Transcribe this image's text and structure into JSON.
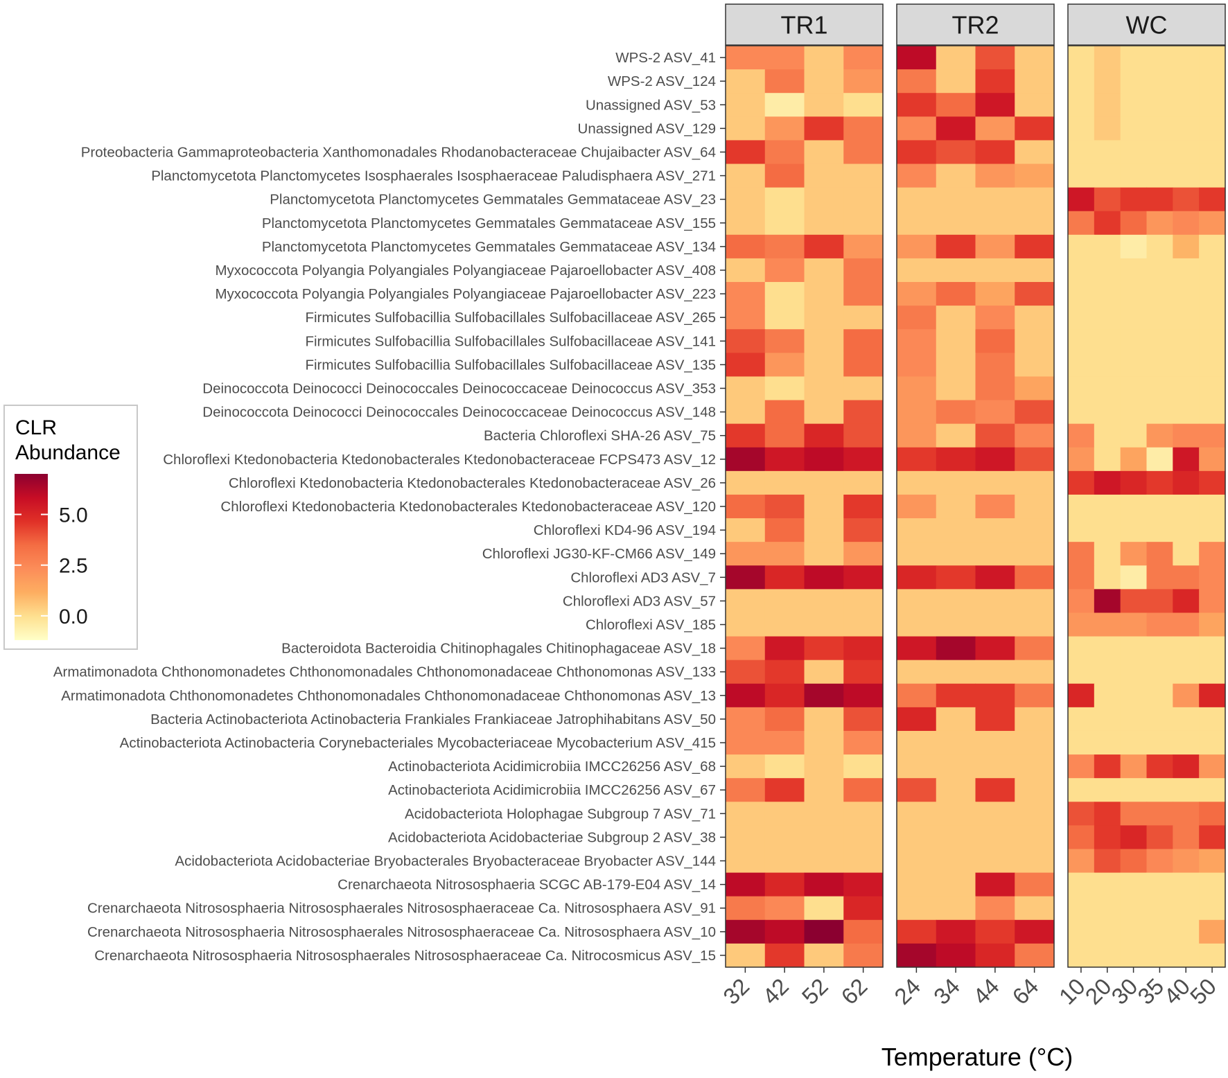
{
  "chart_data": {
    "type": "heatmap",
    "title": "",
    "xlabel": "Temperature (°C)",
    "ylabel": "",
    "legend": {
      "title_line1": "CLR",
      "title_line2": "Abundance",
      "ticks": [
        5.0,
        2.5,
        0.0
      ],
      "tick_labels": [
        "5.0",
        "2.5",
        "0.0"
      ],
      "range": [
        -1.2,
        7.0
      ],
      "placement": "left"
    },
    "color_scale": [
      "#ffffc8",
      "#fee090",
      "#fdae61",
      "#fc8d59",
      "#f46d43",
      "#e03027",
      "#c70d25",
      "#8b0030"
    ],
    "rows": [
      "WPS-2 ASV_41",
      "WPS-2 ASV_124",
      "Unassigned ASV_53",
      "Unassigned ASV_129",
      "Proteobacteria Gammaproteobacteria Xanthomonadales Rhodanobacteraceae Chujaibacter ASV_64",
      "Planctomycetota Planctomycetes Isosphaerales Isosphaeraceae Paludisphaera ASV_271",
      "Planctomycetota Planctomycetes Gemmatales Gemmataceae ASV_23",
      "Planctomycetota Planctomycetes Gemmatales Gemmataceae ASV_155",
      "Planctomycetota Planctomycetes Gemmatales Gemmataceae ASV_134",
      "Myxococcota Polyangia Polyangiales Polyangiaceae Pajaroellobacter ASV_408",
      "Myxococcota Polyangia Polyangiales Polyangiaceae Pajaroellobacter ASV_223",
      "Firmicutes Sulfobacillia Sulfobacillales Sulfobacillaceae ASV_265",
      "Firmicutes Sulfobacillia Sulfobacillales Sulfobacillaceae ASV_141",
      "Firmicutes Sulfobacillia Sulfobacillales Sulfobacillaceae ASV_135",
      "Deinococcota Deinococci Deinococcales Deinococcaceae Deinococcus ASV_353",
      "Deinococcota Deinococci Deinococcales Deinococcaceae Deinococcus ASV_148",
      "Bacteria Chloroflexi SHA-26 ASV_75",
      "Chloroflexi Ktedonobacteria Ktedonobacterales Ktedonobacteraceae FCPS473 ASV_12",
      "Chloroflexi Ktedonobacteria Ktedonobacterales Ktedonobacteraceae ASV_26",
      "Chloroflexi Ktedonobacteria Ktedonobacterales Ktedonobacteraceae ASV_120",
      "Chloroflexi KD4-96 ASV_194",
      "Chloroflexi JG30-KF-CM66 ASV_149",
      "Chloroflexi AD3 ASV_7",
      "Chloroflexi AD3 ASV_57",
      "Chloroflexi ASV_185",
      "Bacteroidota Bacteroidia Chitinophagales Chitinophagaceae ASV_18",
      "Armatimonadota Chthonomonadetes Chthonomonadales Chthonomonadaceae Chthonomonas ASV_133",
      "Armatimonadota Chthonomonadetes Chthonomonadales Chthonomonadaceae Chthonomonas ASV_13",
      "Bacteria Actinobacteriota Actinobacteria Frankiales Frankiaceae Jatrophihabitans ASV_50",
      "Actinobacteriota Actinobacteria Corynebacteriales Mycobacteriaceae Mycobacterium ASV_415",
      "Actinobacteriota Acidimicrobiia IMCC26256 ASV_68",
      "Actinobacteriota Acidimicrobiia IMCC26256 ASV_67",
      "Acidobacteriota Holophagae Subgroup 7 ASV_71",
      "Acidobacteriota Acidobacteriae Subgroup 2 ASV_38",
      "Acidobacteriota Acidobacteriae Bryobacterales Bryobacteraceae Bryobacter ASV_144",
      "Crenarchaeota Nitrososphaeria SCGC AB-179-E04 ASV_14",
      "Crenarchaeota Nitrososphaeria Nitrososphaerales Nitrososphaeraceae Ca. Nitrososphaera ASV_91",
      "Crenarchaeota Nitrososphaeria Nitrososphaerales Nitrososphaeraceae Ca. Nitrososphaera ASV_10",
      "Crenarchaeota Nitrososphaeria Nitrososphaerales Nitrososphaeraceae Ca. Nitrocosmicus ASV_15"
    ],
    "panels": [
      {
        "name": "TR1",
        "x": [
          "32",
          "42",
          "52",
          "62"
        ],
        "values": [
          [
            2.5,
            2.5,
            0.5,
            2.5
          ],
          [
            0.5,
            3.0,
            0.5,
            2.0
          ],
          [
            0.5,
            -0.5,
            0.5,
            0.0
          ],
          [
            0.5,
            2.0,
            4.5,
            3.0
          ],
          [
            4.5,
            3.0,
            0.5,
            3.0
          ],
          [
            0.5,
            3.5,
            0.5,
            0.5
          ],
          [
            0.5,
            0.0,
            0.5,
            0.5
          ],
          [
            0.5,
            0.0,
            0.5,
            0.5
          ],
          [
            3.5,
            3.0,
            4.5,
            2.0
          ],
          [
            0.5,
            2.5,
            0.5,
            3.0
          ],
          [
            2.5,
            0.0,
            0.5,
            3.0
          ],
          [
            2.5,
            0.0,
            0.5,
            0.5
          ],
          [
            4.0,
            3.0,
            0.5,
            3.5
          ],
          [
            4.5,
            2.0,
            0.5,
            3.5
          ],
          [
            0.5,
            0.0,
            0.5,
            0.5
          ],
          [
            0.5,
            3.5,
            0.5,
            4.0
          ],
          [
            4.5,
            3.5,
            5.0,
            4.0
          ],
          [
            6.5,
            5.5,
            6.0,
            5.5
          ],
          [
            0.5,
            0.5,
            0.5,
            0.5
          ],
          [
            3.5,
            4.0,
            0.5,
            4.5
          ],
          [
            0.5,
            3.5,
            0.5,
            4.0
          ],
          [
            2.0,
            2.0,
            0.5,
            2.0
          ],
          [
            6.5,
            5.0,
            6.0,
            5.5
          ],
          [
            0.5,
            0.5,
            0.5,
            0.5
          ],
          [
            0.5,
            0.5,
            0.5,
            0.5
          ],
          [
            2.5,
            5.5,
            4.5,
            5.0
          ],
          [
            4.0,
            4.5,
            0.5,
            4.5
          ],
          [
            6.0,
            5.0,
            6.5,
            6.0
          ],
          [
            2.5,
            3.5,
            0.5,
            4.0
          ],
          [
            2.5,
            2.5,
            0.5,
            2.5
          ],
          [
            0.5,
            0.0,
            0.5,
            0.0
          ],
          [
            3.0,
            4.5,
            0.5,
            3.5
          ],
          [
            0.5,
            0.5,
            0.5,
            0.5
          ],
          [
            0.5,
            0.5,
            0.5,
            0.5
          ],
          [
            0.5,
            0.5,
            0.5,
            0.5
          ],
          [
            6.0,
            5.0,
            6.0,
            5.5
          ],
          [
            3.0,
            2.5,
            0.0,
            5.0
          ],
          [
            6.5,
            6.0,
            7.0,
            3.5
          ],
          [
            0.5,
            4.5,
            0.5,
            3.0
          ]
        ]
      },
      {
        "name": "TR2",
        "x": [
          "24",
          "34",
          "44",
          "64"
        ],
        "values": [
          [
            6.0,
            0.5,
            4.0,
            0.5
          ],
          [
            3.0,
            0.5,
            4.5,
            0.5
          ],
          [
            4.5,
            3.5,
            5.5,
            0.5
          ],
          [
            2.5,
            5.5,
            2.0,
            4.5
          ],
          [
            4.5,
            4.0,
            4.5,
            0.5
          ],
          [
            2.5,
            0.5,
            2.0,
            1.5
          ],
          [
            0.5,
            0.5,
            0.5,
            0.5
          ],
          [
            0.5,
            0.5,
            0.5,
            0.5
          ],
          [
            2.0,
            4.5,
            2.0,
            4.5
          ],
          [
            0.5,
            0.5,
            0.5,
            0.5
          ],
          [
            2.0,
            3.5,
            1.5,
            4.0
          ],
          [
            3.0,
            0.5,
            2.5,
            0.5
          ],
          [
            2.5,
            0.5,
            3.5,
            0.5
          ],
          [
            2.5,
            0.5,
            3.0,
            0.5
          ],
          [
            2.0,
            0.5,
            3.0,
            1.5
          ],
          [
            2.0,
            3.0,
            2.5,
            4.0
          ],
          [
            2.0,
            0.5,
            4.0,
            2.5
          ],
          [
            4.5,
            5.0,
            5.5,
            4.0
          ],
          [
            0.5,
            0.5,
            0.5,
            0.5
          ],
          [
            2.0,
            0.5,
            2.5,
            0.5
          ],
          [
            0.5,
            0.5,
            0.5,
            0.5
          ],
          [
            0.5,
            0.5,
            0.5,
            0.5
          ],
          [
            5.0,
            4.5,
            5.5,
            3.5
          ],
          [
            0.5,
            0.5,
            0.5,
            0.5
          ],
          [
            0.5,
            0.5,
            0.5,
            0.5
          ],
          [
            5.5,
            6.5,
            5.5,
            3.0
          ],
          [
            0.5,
            0.5,
            0.5,
            0.5
          ],
          [
            3.0,
            4.5,
            4.5,
            3.0
          ],
          [
            5.0,
            0.5,
            4.5,
            0.5
          ],
          [
            0.5,
            0.5,
            0.5,
            0.5
          ],
          [
            0.5,
            0.5,
            0.5,
            0.5
          ],
          [
            4.0,
            0.5,
            4.5,
            0.5
          ],
          [
            0.5,
            0.5,
            0.5,
            0.5
          ],
          [
            0.5,
            0.5,
            0.5,
            0.5
          ],
          [
            0.5,
            0.5,
            0.5,
            0.5
          ],
          [
            0.5,
            0.5,
            5.5,
            3.0
          ],
          [
            0.5,
            0.5,
            2.5,
            0.5
          ],
          [
            4.5,
            5.5,
            4.5,
            5.5
          ],
          [
            6.5,
            6.0,
            5.0,
            3.0
          ]
        ]
      },
      {
        "name": "WC",
        "x": [
          "10",
          "20",
          "30",
          "35",
          "40",
          "50"
        ],
        "values": [
          [
            0.0,
            0.5,
            0.0,
            0.0,
            0.0,
            0.0
          ],
          [
            0.0,
            0.5,
            0.0,
            0.0,
            0.0,
            0.0
          ],
          [
            0.0,
            0.5,
            0.0,
            0.0,
            0.0,
            0.0
          ],
          [
            0.0,
            0.5,
            0.0,
            0.0,
            0.0,
            0.0
          ],
          [
            0.0,
            0.0,
            0.0,
            0.0,
            0.0,
            0.0
          ],
          [
            0.0,
            0.0,
            0.0,
            0.0,
            0.0,
            0.0
          ],
          [
            5.5,
            4.0,
            4.5,
            4.5,
            4.0,
            4.5
          ],
          [
            3.0,
            4.5,
            3.5,
            2.0,
            2.5,
            2.0
          ],
          [
            0.0,
            0.0,
            -0.5,
            0.0,
            1.0,
            0.0
          ],
          [
            0.0,
            0.0,
            0.0,
            0.0,
            0.0,
            0.0
          ],
          [
            0.0,
            0.0,
            0.0,
            0.0,
            0.0,
            0.0
          ],
          [
            0.0,
            0.0,
            0.0,
            0.0,
            0.0,
            0.0
          ],
          [
            0.0,
            0.0,
            0.0,
            0.0,
            0.0,
            0.0
          ],
          [
            0.0,
            0.0,
            0.0,
            0.0,
            0.0,
            0.0
          ],
          [
            0.0,
            0.0,
            0.0,
            0.0,
            0.0,
            0.0
          ],
          [
            0.0,
            0.0,
            0.0,
            0.0,
            0.0,
            0.0
          ],
          [
            2.5,
            0.0,
            0.0,
            2.0,
            2.5,
            2.5
          ],
          [
            2.0,
            0.0,
            1.5,
            -0.5,
            5.5,
            2.0
          ],
          [
            4.5,
            5.5,
            5.0,
            4.5,
            5.0,
            4.5
          ],
          [
            0.0,
            0.0,
            0.0,
            0.0,
            0.0,
            0.0
          ],
          [
            0.0,
            0.0,
            0.0,
            0.0,
            0.0,
            0.0
          ],
          [
            3.0,
            0.0,
            2.0,
            3.0,
            0.0,
            2.5
          ],
          [
            3.0,
            0.0,
            -0.5,
            3.0,
            3.0,
            2.5
          ],
          [
            2.5,
            6.5,
            4.0,
            4.0,
            5.0,
            2.5
          ],
          [
            2.0,
            2.0,
            2.0,
            2.5,
            2.5,
            1.5
          ],
          [
            0.0,
            0.0,
            0.0,
            0.0,
            0.0,
            0.0
          ],
          [
            0.0,
            0.0,
            0.0,
            0.0,
            0.0,
            0.0
          ],
          [
            5.0,
            0.0,
            0.0,
            0.0,
            2.0,
            5.0
          ],
          [
            0.0,
            0.0,
            0.0,
            0.0,
            0.0,
            0.0
          ],
          [
            0.0,
            0.0,
            0.0,
            0.0,
            0.0,
            0.0
          ],
          [
            2.5,
            4.5,
            2.0,
            4.5,
            5.0,
            2.0
          ],
          [
            0.0,
            0.0,
            0.0,
            0.0,
            0.0,
            0.0
          ],
          [
            4.0,
            4.5,
            3.0,
            3.0,
            3.0,
            3.5
          ],
          [
            3.5,
            4.5,
            5.0,
            4.0,
            3.0,
            4.5
          ],
          [
            2.0,
            4.0,
            3.5,
            2.5,
            2.0,
            1.5
          ],
          [
            0.0,
            0.0,
            0.0,
            0.0,
            0.0,
            0.0
          ],
          [
            0.0,
            0.0,
            0.0,
            0.0,
            0.0,
            0.0
          ],
          [
            0.0,
            0.0,
            0.0,
            0.0,
            0.0,
            1.5
          ],
          [
            0.0,
            0.0,
            0.0,
            0.0,
            0.0,
            0.0
          ]
        ]
      }
    ]
  }
}
